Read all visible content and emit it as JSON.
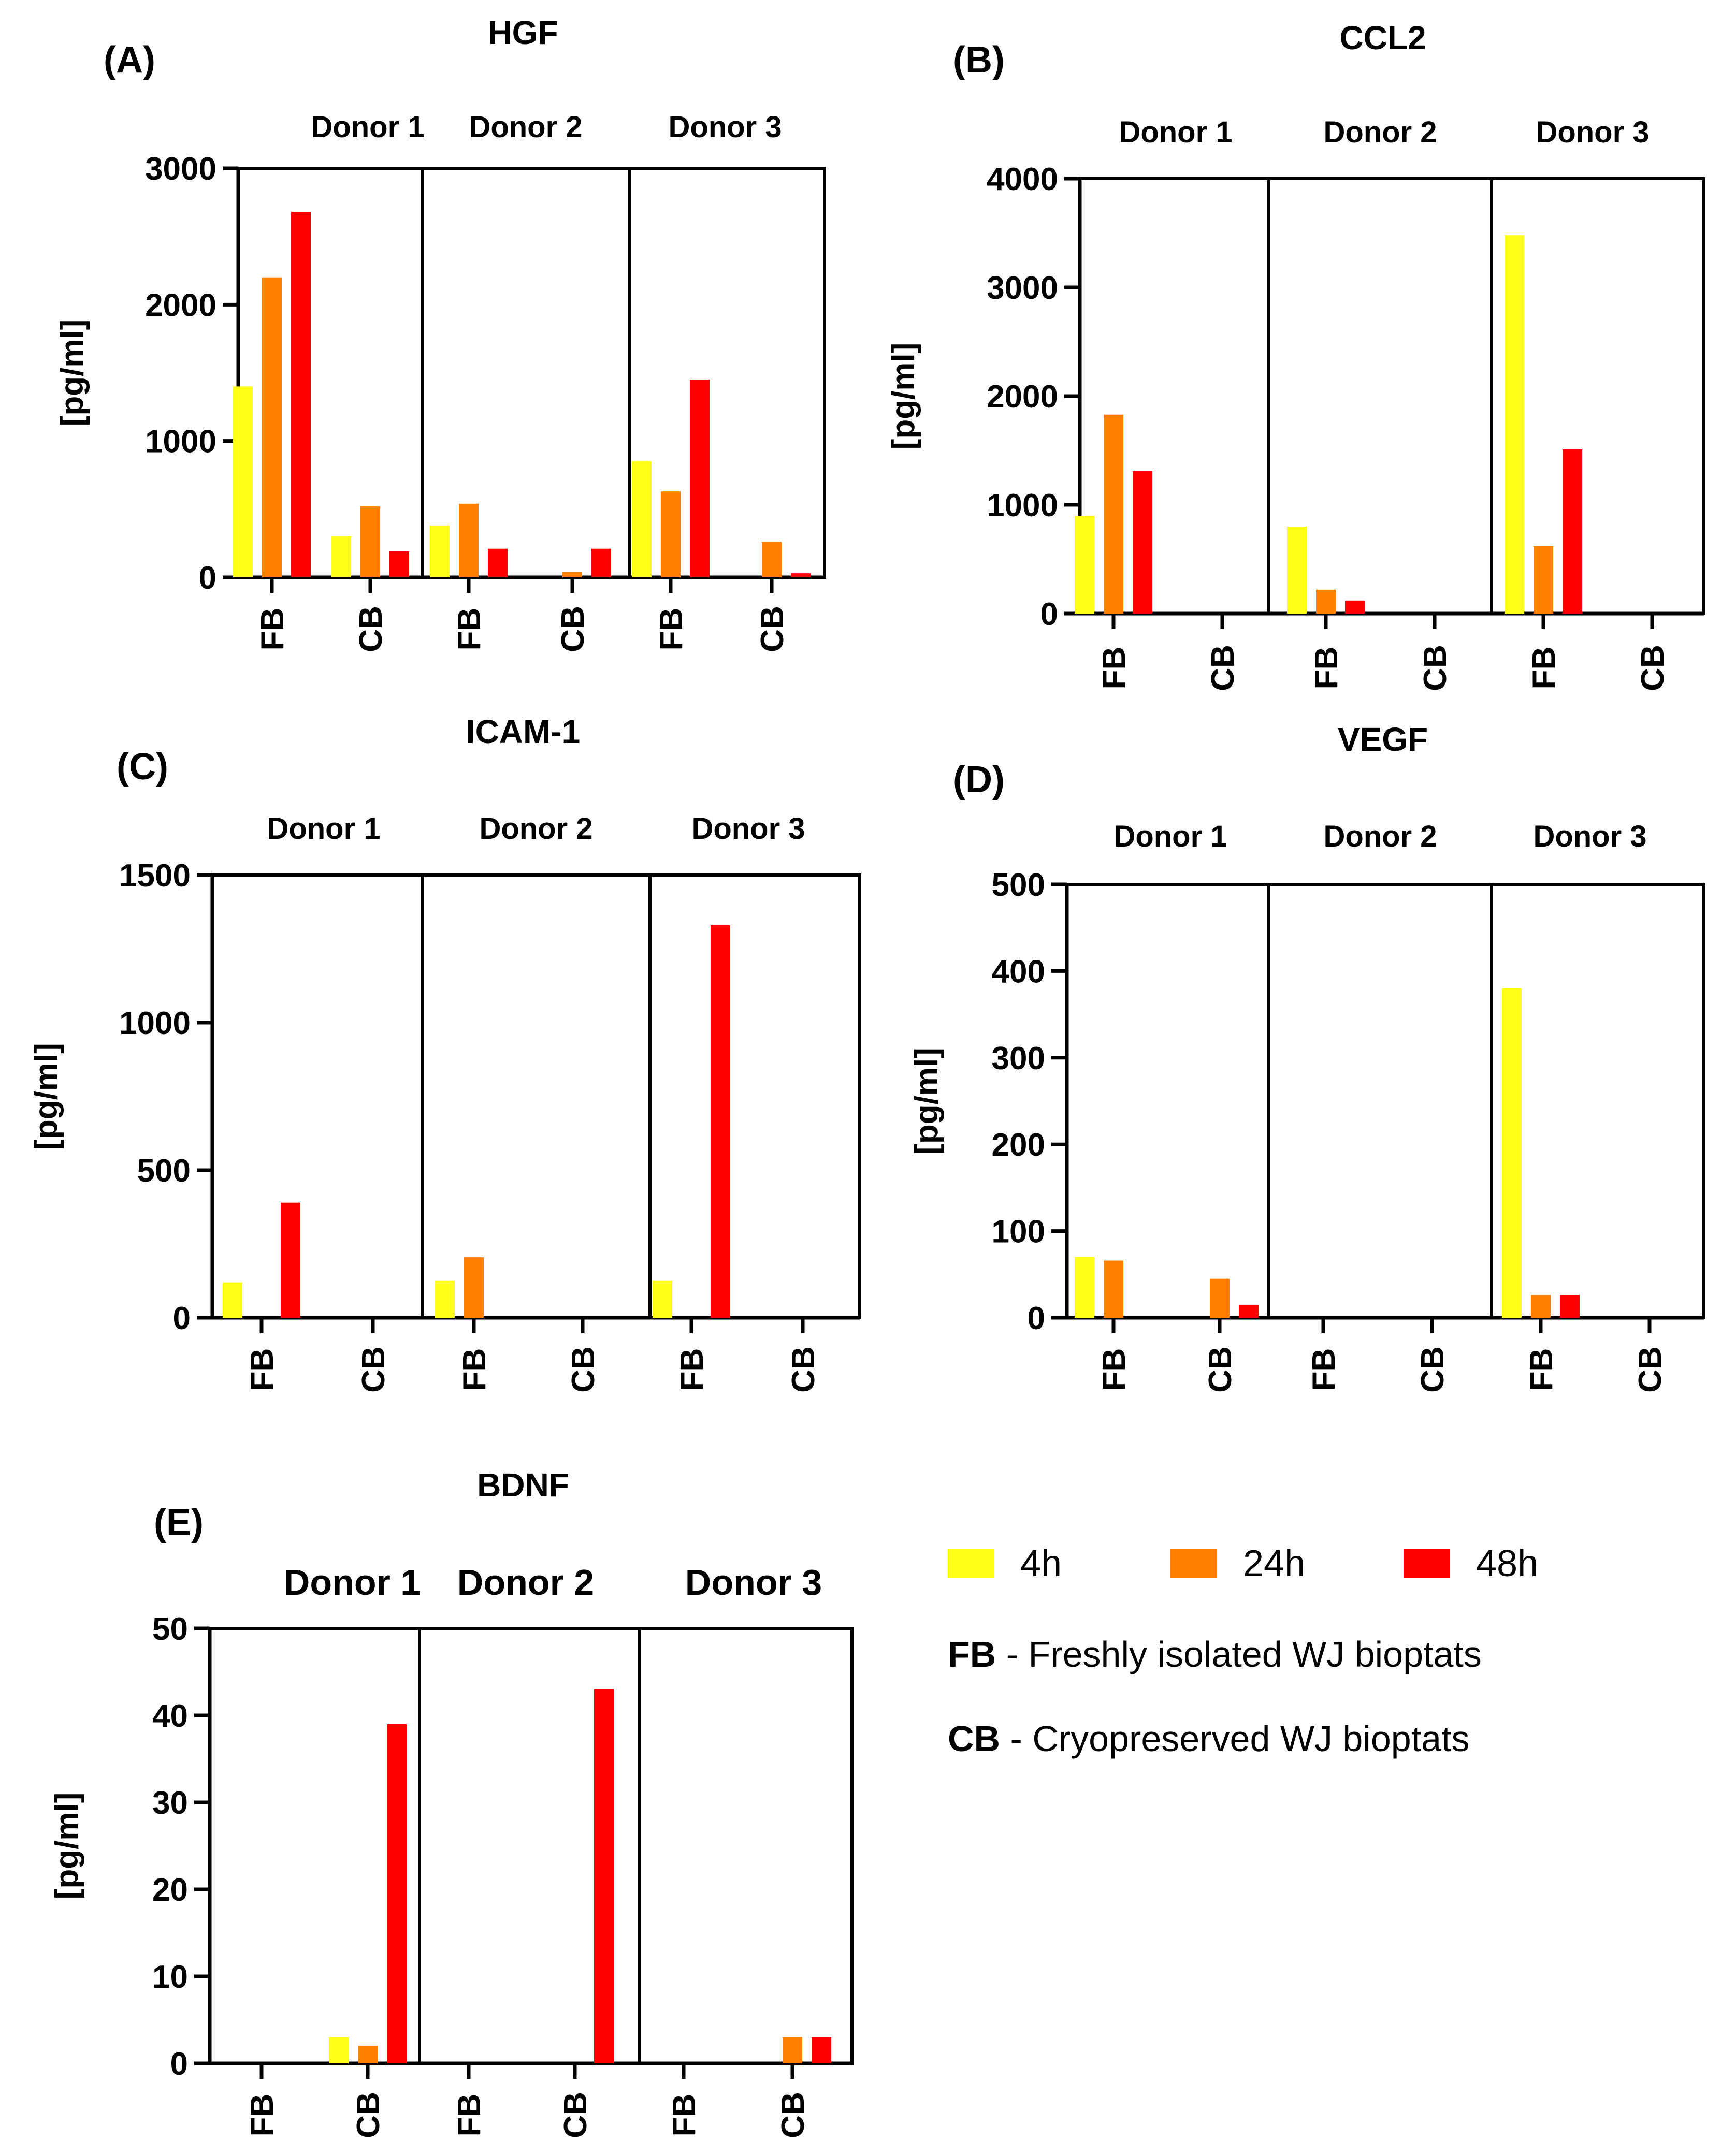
{
  "series_colors": {
    "4h": "#FFFF1A",
    "24h": "#FF8000",
    "48h": "#FF0000"
  },
  "chart_data": [
    {
      "type": "bar",
      "panel_label": "(A)",
      "title": "HGF",
      "ylabel": "[pg/ml]",
      "ylim": [
        0,
        3000
      ],
      "yticks": [
        0,
        1000,
        2000,
        3000
      ],
      "groups": [
        "Donor 1",
        "Donor 2",
        "Donor 3"
      ],
      "categories": [
        "FB",
        "CB"
      ],
      "series": [
        {
          "name": "4h",
          "values": [
            [
              1400,
              300
            ],
            [
              380,
              0
            ],
            [
              850,
              0
            ]
          ]
        },
        {
          "name": "24h",
          "values": [
            [
              2200,
              520
            ],
            [
              540,
              40
            ],
            [
              630,
              260
            ]
          ]
        },
        {
          "name": "48h",
          "values": [
            [
              2680,
              190
            ],
            [
              210,
              210
            ],
            [
              1450,
              30
            ]
          ]
        }
      ]
    },
    {
      "type": "bar",
      "panel_label": "(B)",
      "title": "CCL2",
      "ylabel": "[pg/ml]",
      "ylim": [
        0,
        4000
      ],
      "yticks": [
        0,
        1000,
        2000,
        3000,
        4000
      ],
      "groups": [
        "Donor 1",
        "Donor 2",
        "Donor 3"
      ],
      "categories": [
        "FB",
        "CB"
      ],
      "series": [
        {
          "name": "4h",
          "values": [
            [
              900,
              0
            ],
            [
              800,
              0
            ],
            [
              3480,
              0
            ]
          ]
        },
        {
          "name": "24h",
          "values": [
            [
              1830,
              0
            ],
            [
              220,
              0
            ],
            [
              620,
              0
            ]
          ]
        },
        {
          "name": "48h",
          "values": [
            [
              1310,
              0
            ],
            [
              120,
              0
            ],
            [
              1510,
              0
            ]
          ]
        }
      ]
    },
    {
      "type": "bar",
      "panel_label": "(C)",
      "title": "ICAM-1",
      "ylabel": "[pg/ml]",
      "ylim": [
        0,
        1500
      ],
      "yticks": [
        0,
        500,
        1000,
        1500
      ],
      "groups": [
        "Donor 1",
        "Donor 2",
        "Donor 3"
      ],
      "categories": [
        "FB",
        "CB"
      ],
      "series": [
        {
          "name": "4h",
          "values": [
            [
              120,
              0
            ],
            [
              125,
              0
            ],
            [
              125,
              0
            ]
          ]
        },
        {
          "name": "24h",
          "values": [
            [
              0,
              0
            ],
            [
              205,
              0
            ],
            [
              0,
              0
            ]
          ]
        },
        {
          "name": "48h",
          "values": [
            [
              390,
              0
            ],
            [
              0,
              0
            ],
            [
              1330,
              0
            ]
          ]
        }
      ]
    },
    {
      "type": "bar",
      "panel_label": "(D)",
      "title": "VEGF",
      "ylabel": "[pg/ml]",
      "ylim": [
        0,
        500
      ],
      "yticks": [
        0,
        100,
        200,
        300,
        400,
        500
      ],
      "groups": [
        "Donor 1",
        "Donor 2",
        "Donor 3"
      ],
      "categories": [
        "FB",
        "CB"
      ],
      "series": [
        {
          "name": "4h",
          "values": [
            [
              70,
              0
            ],
            [
              0,
              0
            ],
            [
              380,
              0
            ]
          ]
        },
        {
          "name": "24h",
          "values": [
            [
              66,
              45
            ],
            [
              0,
              0
            ],
            [
              26,
              0
            ]
          ]
        },
        {
          "name": "48h",
          "values": [
            [
              0,
              15
            ],
            [
              0,
              0
            ],
            [
              26,
              0
            ]
          ]
        }
      ]
    },
    {
      "type": "bar",
      "panel_label": "(E)",
      "title": "BDNF",
      "ylabel": "[pg/ml]",
      "ylim": [
        0,
        50
      ],
      "yticks": [
        0,
        10,
        20,
        30,
        40,
        50
      ],
      "groups": [
        "Donor 1",
        "Donor 2",
        "Donor 3"
      ],
      "categories": [
        "FB",
        "CB"
      ],
      "series": [
        {
          "name": "4h",
          "values": [
            [
              0,
              3
            ],
            [
              0,
              0
            ],
            [
              0,
              0
            ]
          ]
        },
        {
          "name": "24h",
          "values": [
            [
              0,
              2
            ],
            [
              0,
              0
            ],
            [
              0,
              3
            ]
          ]
        },
        {
          "name": "48h",
          "values": [
            [
              0,
              39
            ],
            [
              0,
              43
            ],
            [
              0,
              3
            ]
          ]
        }
      ]
    }
  ],
  "legend": {
    "items": [
      "4h",
      "24h",
      "48h"
    ],
    "notes": [
      {
        "abbr": "FB",
        "text": " - Freshly isolated WJ bioptats"
      },
      {
        "abbr": "CB",
        "text": " - Cryopreserved WJ bioptats"
      }
    ]
  }
}
